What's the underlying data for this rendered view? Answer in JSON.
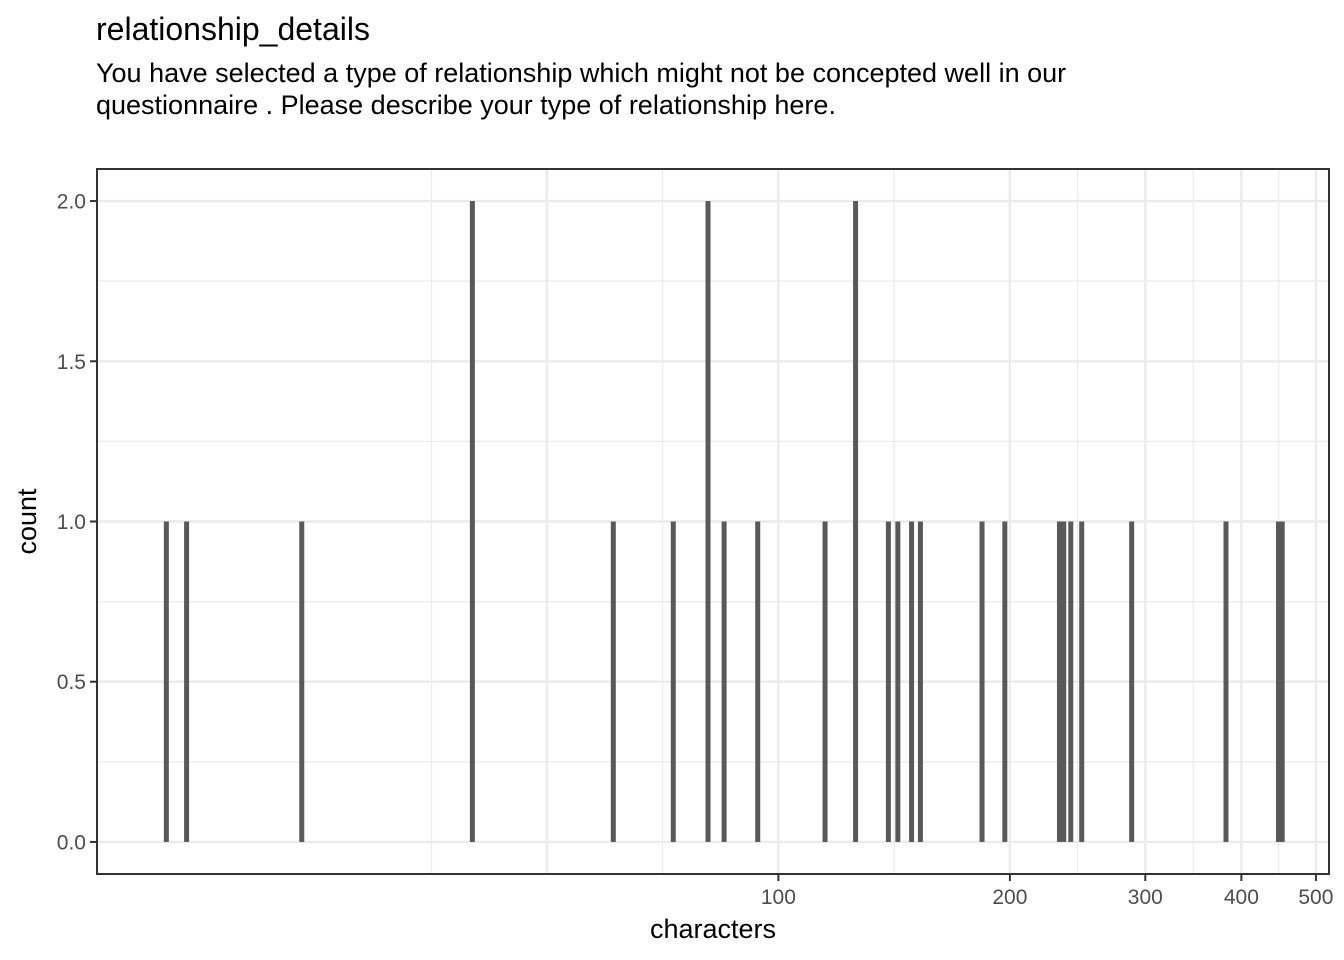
{
  "chart_data": {
    "type": "bar",
    "title": "relationship_details",
    "subtitle": "You have selected a type of relationship which might not be concepted well in our questionnaire . Please describe your type of relationship here.",
    "xlabel": "characters",
    "ylabel": "count",
    "x_scale": "log10",
    "x_ticks": [
      100,
      200,
      300,
      400,
      500
    ],
    "x_tick_labels": [
      "100",
      "200",
      "300",
      "400",
      "500"
    ],
    "y_ticks": [
      0,
      0.5,
      1,
      1.5,
      2
    ],
    "y_tick_labels": [
      "0.0",
      "0.5",
      "1.0",
      "1.5",
      "2.0"
    ],
    "xlim": [
      13,
      520
    ],
    "ylim": [
      -0.1,
      2.1
    ],
    "grid": true,
    "bar_color": "#595959",
    "series": [
      {
        "values": [
          {
            "x": 16,
            "y": 1
          },
          {
            "x": 17,
            "y": 1
          },
          {
            "x": 24,
            "y": 1
          },
          {
            "x": 40,
            "y": 2
          },
          {
            "x": 61,
            "y": 1
          },
          {
            "x": 73,
            "y": 1
          },
          {
            "x": 81,
            "y": 2
          },
          {
            "x": 85,
            "y": 1
          },
          {
            "x": 94,
            "y": 1
          },
          {
            "x": 115,
            "y": 1
          },
          {
            "x": 126,
            "y": 2
          },
          {
            "x": 139,
            "y": 1
          },
          {
            "x": 143,
            "y": 1
          },
          {
            "x": 149,
            "y": 1
          },
          {
            "x": 153,
            "y": 1
          },
          {
            "x": 184,
            "y": 1
          },
          {
            "x": 197,
            "y": 1
          },
          {
            "x": 232,
            "y": 1
          },
          {
            "x": 235,
            "y": 1
          },
          {
            "x": 240,
            "y": 1
          },
          {
            "x": 248,
            "y": 1
          },
          {
            "x": 288,
            "y": 1
          },
          {
            "x": 382,
            "y": 1
          },
          {
            "x": 447,
            "y": 1
          },
          {
            "x": 452,
            "y": 1
          }
        ]
      }
    ]
  }
}
